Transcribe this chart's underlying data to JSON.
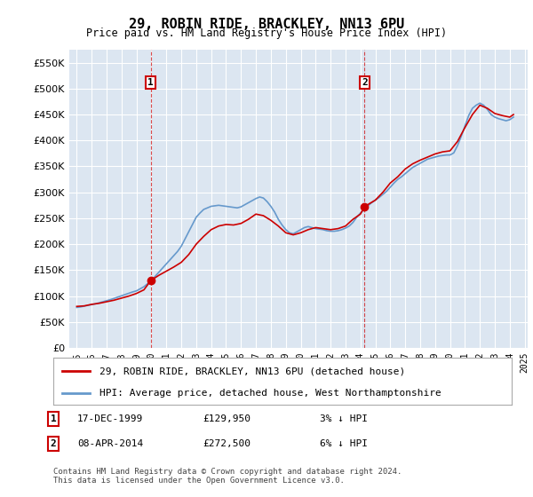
{
  "title": "29, ROBIN RIDE, BRACKLEY, NN13 6PU",
  "subtitle": "Price paid vs. HM Land Registry's House Price Index (HPI)",
  "legend_line1": "29, ROBIN RIDE, BRACKLEY, NN13 6PU (detached house)",
  "legend_line2": "HPI: Average price, detached house, West Northamptonshire",
  "footnote": "Contains HM Land Registry data © Crown copyright and database right 2024.\nThis data is licensed under the Open Government Licence v3.0.",
  "table_rows": [
    {
      "num": "1",
      "date": "17-DEC-1999",
      "price": "£129,950",
      "hpi": "3% ↓ HPI"
    },
    {
      "num": "2",
      "date": "08-APR-2014",
      "price": "£272,500",
      "hpi": "6% ↓ HPI"
    }
  ],
  "price_color": "#cc0000",
  "hpi_color": "#6699cc",
  "background_color": "#ffffff",
  "plot_bg_color": "#dce6f1",
  "grid_color": "#ffffff",
  "ylim": [
    0,
    575000
  ],
  "yticks": [
    0,
    50000,
    100000,
    150000,
    200000,
    250000,
    300000,
    350000,
    400000,
    450000,
    500000,
    550000
  ],
  "xlabel": "",
  "ylabel": "",
  "purchase1_year": 1999.96,
  "purchase1_price": 129950,
  "purchase2_year": 2014.27,
  "purchase2_price": 272500,
  "vline1_year": 1999.96,
  "vline2_year": 2014.27,
  "hpi_x": [
    1995.0,
    1995.25,
    1995.5,
    1995.75,
    1996.0,
    1996.25,
    1996.5,
    1996.75,
    1997.0,
    1997.25,
    1997.5,
    1997.75,
    1998.0,
    1998.25,
    1998.5,
    1998.75,
    1999.0,
    1999.25,
    1999.5,
    1999.75,
    2000.0,
    2000.25,
    2000.5,
    2000.75,
    2001.0,
    2001.25,
    2001.5,
    2001.75,
    2002.0,
    2002.25,
    2002.5,
    2002.75,
    2003.0,
    2003.25,
    2003.5,
    2003.75,
    2004.0,
    2004.25,
    2004.5,
    2004.75,
    2005.0,
    2005.25,
    2005.5,
    2005.75,
    2006.0,
    2006.25,
    2006.5,
    2006.75,
    2007.0,
    2007.25,
    2007.5,
    2007.75,
    2008.0,
    2008.25,
    2008.5,
    2008.75,
    2009.0,
    2009.25,
    2009.5,
    2009.75,
    2010.0,
    2010.25,
    2010.5,
    2010.75,
    2011.0,
    2011.25,
    2011.5,
    2011.75,
    2012.0,
    2012.25,
    2012.5,
    2012.75,
    2013.0,
    2013.25,
    2013.5,
    2013.75,
    2014.0,
    2014.25,
    2014.5,
    2014.75,
    2015.0,
    2015.25,
    2015.5,
    2015.75,
    2016.0,
    2016.25,
    2016.5,
    2016.75,
    2017.0,
    2017.25,
    2017.5,
    2017.75,
    2018.0,
    2018.25,
    2018.5,
    2018.75,
    2019.0,
    2019.25,
    2019.5,
    2019.75,
    2020.0,
    2020.25,
    2020.5,
    2020.75,
    2021.0,
    2021.25,
    2021.5,
    2021.75,
    2022.0,
    2022.25,
    2022.5,
    2022.75,
    2023.0,
    2023.25,
    2023.5,
    2023.75,
    2024.0,
    2024.25
  ],
  "hpi_y": [
    78000,
    79000,
    80500,
    82000,
    83500,
    85000,
    87000,
    89000,
    91000,
    93000,
    95500,
    98000,
    100500,
    103000,
    105500,
    108000,
    110000,
    114000,
    118000,
    124000,
    130000,
    138000,
    146000,
    154000,
    162000,
    170000,
    178000,
    186000,
    196000,
    210000,
    224000,
    238000,
    252000,
    260000,
    267000,
    270000,
    273000,
    274000,
    275000,
    274000,
    273000,
    272000,
    271000,
    270000,
    272000,
    276000,
    280000,
    284000,
    288000,
    291000,
    289000,
    282000,
    273000,
    262000,
    248000,
    237000,
    228000,
    222000,
    220000,
    224000,
    228000,
    232000,
    234000,
    232000,
    230000,
    229000,
    228000,
    226000,
    225000,
    225000,
    226000,
    228000,
    231000,
    235000,
    242000,
    252000,
    260000,
    267000,
    274000,
    280000,
    285000,
    290000,
    296000,
    302000,
    310000,
    318000,
    325000,
    330000,
    336000,
    342000,
    348000,
    352000,
    356000,
    360000,
    364000,
    366000,
    368000,
    370000,
    371000,
    372000,
    372000,
    376000,
    390000,
    408000,
    428000,
    448000,
    462000,
    468000,
    472000,
    468000,
    460000,
    450000,
    445000,
    442000,
    440000,
    438000,
    440000,
    445000
  ],
  "price_x": [
    1995.0,
    1995.5,
    1996.0,
    1996.5,
    1997.0,
    1997.5,
    1998.0,
    1998.5,
    1999.0,
    1999.5,
    1999.96,
    2000.5,
    2001.0,
    2001.5,
    2002.0,
    2002.5,
    2003.0,
    2003.5,
    2004.0,
    2004.5,
    2005.0,
    2005.5,
    2006.0,
    2006.5,
    2007.0,
    2007.5,
    2008.0,
    2008.5,
    2009.0,
    2009.5,
    2010.0,
    2010.5,
    2011.0,
    2011.5,
    2012.0,
    2012.5,
    2013.0,
    2013.5,
    2014.0,
    2014.27,
    2015.0,
    2015.5,
    2016.0,
    2016.5,
    2017.0,
    2017.5,
    2018.0,
    2018.5,
    2019.0,
    2019.5,
    2020.0,
    2020.5,
    2021.0,
    2021.5,
    2022.0,
    2022.5,
    2023.0,
    2023.5,
    2024.0,
    2024.25
  ],
  "price_y": [
    80000,
    81000,
    84000,
    86000,
    89000,
    92000,
    96000,
    100000,
    105000,
    112000,
    129950,
    140000,
    148000,
    156000,
    165000,
    180000,
    200000,
    215000,
    228000,
    235000,
    238000,
    237000,
    240000,
    248000,
    258000,
    255000,
    246000,
    235000,
    222000,
    218000,
    222000,
    228000,
    232000,
    230000,
    228000,
    230000,
    235000,
    248000,
    258000,
    272500,
    285000,
    300000,
    318000,
    330000,
    345000,
    355000,
    362000,
    368000,
    374000,
    378000,
    380000,
    398000,
    425000,
    450000,
    468000,
    462000,
    452000,
    448000,
    445000,
    450000
  ]
}
